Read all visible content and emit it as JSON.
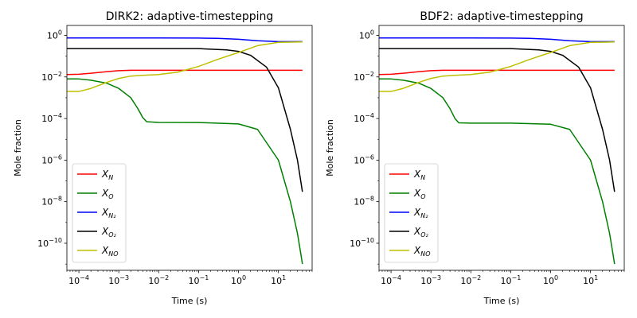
{
  "chart_data": [
    {
      "type": "line",
      "title": "DIRK2: adaptive-timestepping",
      "xlabel": "Time (s)",
      "ylabel": "Mole fraction",
      "xscale": "log",
      "yscale": "log",
      "xlim": [
        5e-05,
        70
      ],
      "ylim": [
        5e-12,
        3
      ],
      "xticks": [
        {
          "value": 0.0001,
          "base": "10",
          "exp": "−4"
        },
        {
          "value": 0.001,
          "base": "10",
          "exp": "−3"
        },
        {
          "value": 0.01,
          "base": "10",
          "exp": "−2"
        },
        {
          "value": 0.1,
          "base": "10",
          "exp": "−1"
        },
        {
          "value": 1,
          "base": "10",
          "exp": "0"
        },
        {
          "value": 10,
          "base": "10",
          "exp": "1"
        }
      ],
      "yticks": [
        {
          "value": 1e-10,
          "base": "10",
          "exp": "−10"
        },
        {
          "value": 1e-08,
          "base": "10",
          "exp": "−8"
        },
        {
          "value": 1e-06,
          "base": "10",
          "exp": "−6"
        },
        {
          "value": 0.0001,
          "base": "10",
          "exp": "−4"
        },
        {
          "value": 0.01,
          "base": "10",
          "exp": "−2"
        },
        {
          "value": 1,
          "base": "10",
          "exp": "0"
        }
      ],
      "grid": false,
      "legend_position": "lower-left",
      "series": [
        {
          "main": "X",
          "sub": "N",
          "color": "#ff0000",
          "x": [
            5e-05,
            0.0001,
            0.0002,
            0.0005,
            0.001,
            0.002,
            0.004,
            0.01,
            0.1,
            1,
            10,
            40
          ],
          "y": [
            0.013,
            0.0135,
            0.015,
            0.018,
            0.02,
            0.021,
            0.021,
            0.021,
            0.021,
            0.021,
            0.021,
            0.021
          ]
        },
        {
          "main": "X",
          "sub": "O",
          "color": "#008000",
          "x": [
            5e-05,
            0.0001,
            0.0002,
            0.0005,
            0.001,
            0.002,
            0.003,
            0.004,
            0.005,
            0.01,
            0.1,
            1,
            3,
            10,
            20,
            30,
            35,
            40
          ],
          "y": [
            0.008,
            0.008,
            0.007,
            0.005,
            0.0028,
            0.001,
            0.0003,
            0.00011,
            7e-05,
            6.5e-05,
            6.4e-05,
            5.5e-05,
            3e-05,
            1e-06,
            1e-08,
            3e-10,
            5e-11,
            1e-11
          ]
        },
        {
          "main": "X",
          "sub": "N₂",
          "color": "#0000ff",
          "x": [
            5e-05,
            0.0001,
            0.001,
            0.01,
            0.1,
            0.3,
            1,
            3,
            10,
            40
          ],
          "y": [
            0.75,
            0.75,
            0.75,
            0.75,
            0.74,
            0.72,
            0.65,
            0.55,
            0.5,
            0.5
          ]
        },
        {
          "main": "X",
          "sub": "O₂",
          "color": "#000000",
          "x": [
            5e-05,
            0.0001,
            0.001,
            0.01,
            0.1,
            0.5,
            1,
            2,
            5,
            10,
            20,
            30,
            40
          ],
          "y": [
            0.23,
            0.23,
            0.23,
            0.23,
            0.23,
            0.2,
            0.17,
            0.11,
            0.03,
            0.003,
            3e-05,
            1e-06,
            3e-08
          ]
        },
        {
          "main": "X",
          "sub": "NO",
          "color": "#bfbf00",
          "x": [
            5e-05,
            0.0001,
            0.0002,
            0.0005,
            0.001,
            0.002,
            0.004,
            0.01,
            0.03,
            0.1,
            0.3,
            1,
            3,
            10,
            40
          ],
          "y": [
            0.002,
            0.002,
            0.0028,
            0.0055,
            0.0085,
            0.011,
            0.012,
            0.013,
            0.017,
            0.032,
            0.07,
            0.15,
            0.32,
            0.46,
            0.48
          ]
        }
      ]
    },
    {
      "type": "line",
      "title": "BDF2: adaptive-timestepping",
      "xlabel": "Time (s)",
      "ylabel": "Mole fraction",
      "xscale": "log",
      "yscale": "log",
      "xlim": [
        5e-05,
        70
      ],
      "ylim": [
        5e-12,
        3
      ],
      "xticks": [
        {
          "value": 0.0001,
          "base": "10",
          "exp": "−4"
        },
        {
          "value": 0.001,
          "base": "10",
          "exp": "−3"
        },
        {
          "value": 0.01,
          "base": "10",
          "exp": "−2"
        },
        {
          "value": 0.1,
          "base": "10",
          "exp": "−1"
        },
        {
          "value": 1,
          "base": "10",
          "exp": "0"
        },
        {
          "value": 10,
          "base": "10",
          "exp": "1"
        }
      ],
      "yticks": [
        {
          "value": 1e-10,
          "base": "10",
          "exp": "−10"
        },
        {
          "value": 1e-08,
          "base": "10",
          "exp": "−8"
        },
        {
          "value": 1e-06,
          "base": "10",
          "exp": "−6"
        },
        {
          "value": 0.0001,
          "base": "10",
          "exp": "−4"
        },
        {
          "value": 0.01,
          "base": "10",
          "exp": "−2"
        },
        {
          "value": 1,
          "base": "10",
          "exp": "0"
        }
      ],
      "grid": false,
      "legend_position": "lower-left",
      "series": [
        {
          "main": "X",
          "sub": "N",
          "color": "#ff0000",
          "x": [
            5e-05,
            0.0001,
            0.0002,
            0.0005,
            0.001,
            0.002,
            0.004,
            0.01,
            0.1,
            1,
            10,
            40
          ],
          "y": [
            0.013,
            0.0135,
            0.015,
            0.018,
            0.02,
            0.021,
            0.021,
            0.021,
            0.021,
            0.021,
            0.021,
            0.021
          ]
        },
        {
          "main": "X",
          "sub": "O",
          "color": "#008000",
          "x": [
            5e-05,
            0.0001,
            0.0002,
            0.0005,
            0.001,
            0.002,
            0.003,
            0.004,
            0.005,
            0.01,
            0.1,
            1,
            3,
            10,
            20,
            30,
            35,
            40
          ],
          "y": [
            0.008,
            0.008,
            0.007,
            0.005,
            0.0028,
            0.001,
            0.0003,
            0.0001,
            6.2e-05,
            6e-05,
            6e-05,
            5.3e-05,
            3e-05,
            1e-06,
            1e-08,
            3e-10,
            5e-11,
            1e-11
          ]
        },
        {
          "main": "X",
          "sub": "N₂",
          "color": "#0000ff",
          "x": [
            5e-05,
            0.0001,
            0.001,
            0.01,
            0.1,
            0.3,
            1,
            3,
            10,
            40
          ],
          "y": [
            0.75,
            0.75,
            0.75,
            0.75,
            0.74,
            0.72,
            0.65,
            0.55,
            0.5,
            0.5
          ]
        },
        {
          "main": "X",
          "sub": "O₂",
          "color": "#000000",
          "x": [
            5e-05,
            0.0001,
            0.001,
            0.01,
            0.1,
            0.5,
            1,
            2,
            5,
            10,
            20,
            30,
            40
          ],
          "y": [
            0.23,
            0.23,
            0.23,
            0.23,
            0.23,
            0.2,
            0.17,
            0.11,
            0.03,
            0.003,
            3e-05,
            1e-06,
            3e-08
          ]
        },
        {
          "main": "X",
          "sub": "NO",
          "color": "#bfbf00",
          "x": [
            5e-05,
            0.0001,
            0.0002,
            0.0005,
            0.001,
            0.002,
            0.004,
            0.01,
            0.03,
            0.1,
            0.3,
            1,
            3,
            10,
            40
          ],
          "y": [
            0.002,
            0.002,
            0.0028,
            0.0055,
            0.0085,
            0.011,
            0.012,
            0.013,
            0.017,
            0.032,
            0.07,
            0.15,
            0.32,
            0.46,
            0.48
          ]
        }
      ]
    }
  ]
}
